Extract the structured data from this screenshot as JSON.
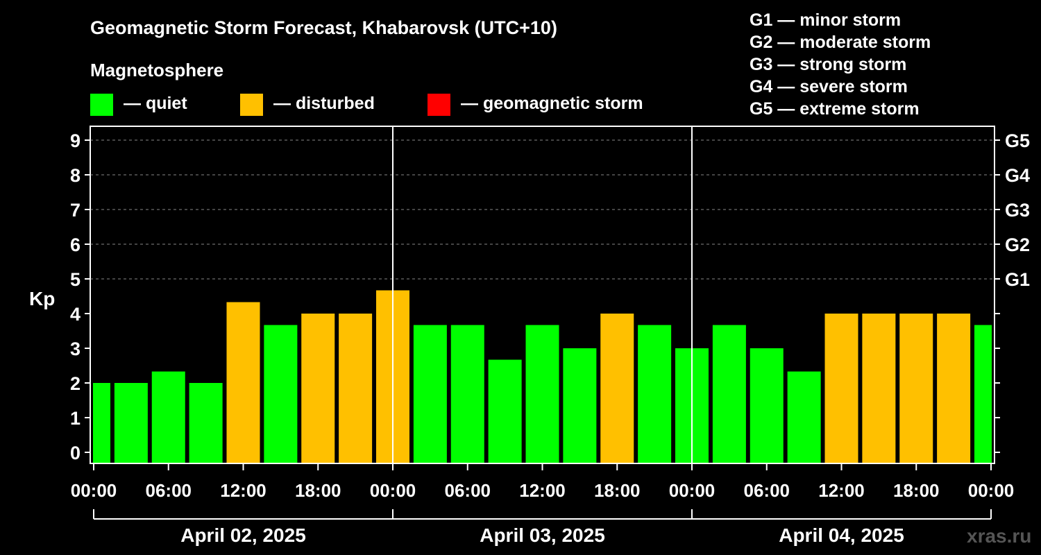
{
  "title": "Geomagnetic Storm Forecast, Khabarovsk (UTC+10)",
  "legend": {
    "heading": "Magnetosphere",
    "items": [
      {
        "label": "— quiet",
        "color": "#00ff00"
      },
      {
        "label": "— disturbed",
        "color": "#ffc000"
      },
      {
        "label": "— geomagnetic storm",
        "color": "#ff0000"
      }
    ],
    "storm_levels": [
      "G1 — minor storm",
      "G2 — moderate storm",
      "G3 — strong storm",
      "G4 — severe storm",
      "G5 — extreme storm"
    ]
  },
  "watermark": "xras.ru",
  "chart_data": {
    "type": "bar",
    "ylabel": "Kp",
    "ylim": [
      0,
      9
    ],
    "yticks": [
      "0",
      "1",
      "2",
      "3",
      "4",
      "5",
      "6",
      "7",
      "8",
      "9"
    ],
    "right_axis_labels": [
      {
        "value": 5,
        "label": "G1"
      },
      {
        "value": 6,
        "label": "G2"
      },
      {
        "value": 7,
        "label": "G3"
      },
      {
        "value": 8,
        "label": "G4"
      },
      {
        "value": 9,
        "label": "G5"
      }
    ],
    "xtick_labels": [
      "00:00",
      "06:00",
      "12:00",
      "18:00",
      "00:00",
      "06:00",
      "12:00",
      "18:00",
      "00:00",
      "06:00",
      "12:00",
      "18:00",
      "00:00"
    ],
    "dates": [
      "April 02, 2025",
      "April 03, 2025",
      "April 04, 2025"
    ],
    "grid": true,
    "bars": [
      {
        "time": "April 02 00:00",
        "kp": 2.0,
        "state": "quiet"
      },
      {
        "time": "April 02 03:00",
        "kp": 2.0,
        "state": "quiet"
      },
      {
        "time": "April 02 06:00",
        "kp": 2.33,
        "state": "quiet"
      },
      {
        "time": "April 02 09:00",
        "kp": 2.0,
        "state": "quiet"
      },
      {
        "time": "April 02 12:00",
        "kp": 4.33,
        "state": "disturbed"
      },
      {
        "time": "April 02 15:00",
        "kp": 3.67,
        "state": "quiet"
      },
      {
        "time": "April 02 18:00",
        "kp": 4.0,
        "state": "disturbed"
      },
      {
        "time": "April 02 21:00",
        "kp": 4.0,
        "state": "disturbed"
      },
      {
        "time": "April 03 00:00",
        "kp": 4.67,
        "state": "disturbed"
      },
      {
        "time": "April 03 03:00",
        "kp": 3.67,
        "state": "quiet"
      },
      {
        "time": "April 03 06:00",
        "kp": 3.67,
        "state": "quiet"
      },
      {
        "time": "April 03 09:00",
        "kp": 2.67,
        "state": "quiet"
      },
      {
        "time": "April 03 12:00",
        "kp": 3.67,
        "state": "quiet"
      },
      {
        "time": "April 03 15:00",
        "kp": 3.0,
        "state": "quiet"
      },
      {
        "time": "April 03 18:00",
        "kp": 4.0,
        "state": "disturbed"
      },
      {
        "time": "April 03 21:00",
        "kp": 3.67,
        "state": "quiet"
      },
      {
        "time": "April 04 00:00",
        "kp": 3.0,
        "state": "quiet"
      },
      {
        "time": "April 04 03:00",
        "kp": 3.67,
        "state": "quiet"
      },
      {
        "time": "April 04 06:00",
        "kp": 3.0,
        "state": "quiet"
      },
      {
        "time": "April 04 09:00",
        "kp": 2.33,
        "state": "quiet"
      },
      {
        "time": "April 04 12:00",
        "kp": 4.0,
        "state": "disturbed"
      },
      {
        "time": "April 04 15:00",
        "kp": 4.0,
        "state": "disturbed"
      },
      {
        "time": "April 04 18:00",
        "kp": 4.0,
        "state": "disturbed"
      },
      {
        "time": "April 04 21:00",
        "kp": 4.0,
        "state": "disturbed"
      },
      {
        "time": "April 05 00:00",
        "kp": 3.67,
        "state": "quiet"
      }
    ]
  }
}
